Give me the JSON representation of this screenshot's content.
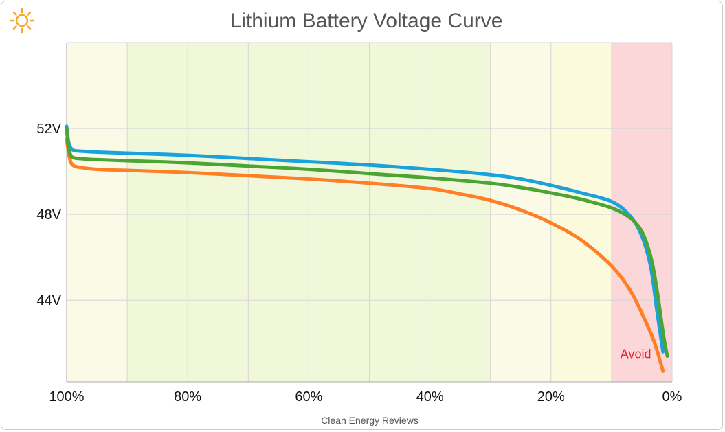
{
  "title": "Lithium Battery Voltage Curve",
  "footer": "Clean Energy Reviews",
  "logo_icon": "sun-icon",
  "chart_data": {
    "type": "line",
    "title": "Lithium Battery Voltage Curve",
    "xlabel": "",
    "ylabel": "",
    "x_direction": "descending",
    "xlim": [
      100,
      0
    ],
    "ylim": [
      40.2,
      56
    ],
    "x_ticks": [
      "100%",
      "80%",
      "60%",
      "40%",
      "20%",
      "0%"
    ],
    "x_tick_values": [
      100,
      80,
      60,
      40,
      20,
      0
    ],
    "y_ticks": [
      "52V",
      "48V",
      "44V"
    ],
    "y_tick_values": [
      52,
      48,
      44
    ],
    "grid": true,
    "bands": [
      {
        "from": 100,
        "to": 90,
        "color": "#fafae6"
      },
      {
        "from": 90,
        "to": 30,
        "color": "#f1f8da"
      },
      {
        "from": 30,
        "to": 20,
        "color": "#fafae6"
      },
      {
        "from": 20,
        "to": 10,
        "color": "#fcfadc"
      },
      {
        "from": 10,
        "to": 0,
        "color": "#fcd7da"
      }
    ],
    "annotations": [
      {
        "text": "Avoid",
        "x": 6,
        "y": 41.3,
        "color": "#e8202c"
      }
    ],
    "series": [
      {
        "color": "#ff7f27",
        "points": [
          [
            100,
            51.5
          ],
          [
            99.7,
            50.9
          ],
          [
            99.4,
            50.5
          ],
          [
            99,
            50.3
          ],
          [
            98,
            50.2
          ],
          [
            95,
            50.1
          ],
          [
            90,
            50.05
          ],
          [
            80,
            49.95
          ],
          [
            70,
            49.8
          ],
          [
            60,
            49.65
          ],
          [
            50,
            49.45
          ],
          [
            40,
            49.2
          ],
          [
            35,
            48.95
          ],
          [
            30,
            48.65
          ],
          [
            25,
            48.2
          ],
          [
            20,
            47.6
          ],
          [
            15,
            46.8
          ],
          [
            10,
            45.6
          ],
          [
            7,
            44.5
          ],
          [
            5,
            43.4
          ],
          [
            3,
            42.1
          ],
          [
            1.5,
            40.7
          ]
        ]
      },
      {
        "color": "#1aa2dc",
        "points": [
          [
            100,
            52.1
          ],
          [
            99.7,
            51.4
          ],
          [
            99.4,
            51.15
          ],
          [
            99,
            51.0
          ],
          [
            98,
            50.95
          ],
          [
            95,
            50.9
          ],
          [
            90,
            50.85
          ],
          [
            80,
            50.75
          ],
          [
            70,
            50.6
          ],
          [
            60,
            50.45
          ],
          [
            50,
            50.3
          ],
          [
            40,
            50.1
          ],
          [
            30,
            49.85
          ],
          [
            25,
            49.65
          ],
          [
            20,
            49.35
          ],
          [
            15,
            49.0
          ],
          [
            10,
            48.6
          ],
          [
            7,
            47.95
          ],
          [
            5,
            47.0
          ],
          [
            3.5,
            45.5
          ],
          [
            2.5,
            43.5
          ],
          [
            1.5,
            41.6
          ]
        ]
      },
      {
        "color": "#4aa535",
        "points": [
          [
            100,
            52.0
          ],
          [
            99.7,
            51.1
          ],
          [
            99.4,
            50.8
          ],
          [
            99,
            50.65
          ],
          [
            98,
            50.6
          ],
          [
            95,
            50.55
          ],
          [
            90,
            50.5
          ],
          [
            80,
            50.4
          ],
          [
            70,
            50.25
          ],
          [
            60,
            50.1
          ],
          [
            50,
            49.9
          ],
          [
            40,
            49.7
          ],
          [
            30,
            49.45
          ],
          [
            25,
            49.25
          ],
          [
            20,
            49.0
          ],
          [
            15,
            48.7
          ],
          [
            10,
            48.3
          ],
          [
            7,
            47.85
          ],
          [
            5,
            47.2
          ],
          [
            3.5,
            46.0
          ],
          [
            2.5,
            44.5
          ],
          [
            1.5,
            42.5
          ],
          [
            0.8,
            41.4
          ]
        ]
      }
    ]
  }
}
